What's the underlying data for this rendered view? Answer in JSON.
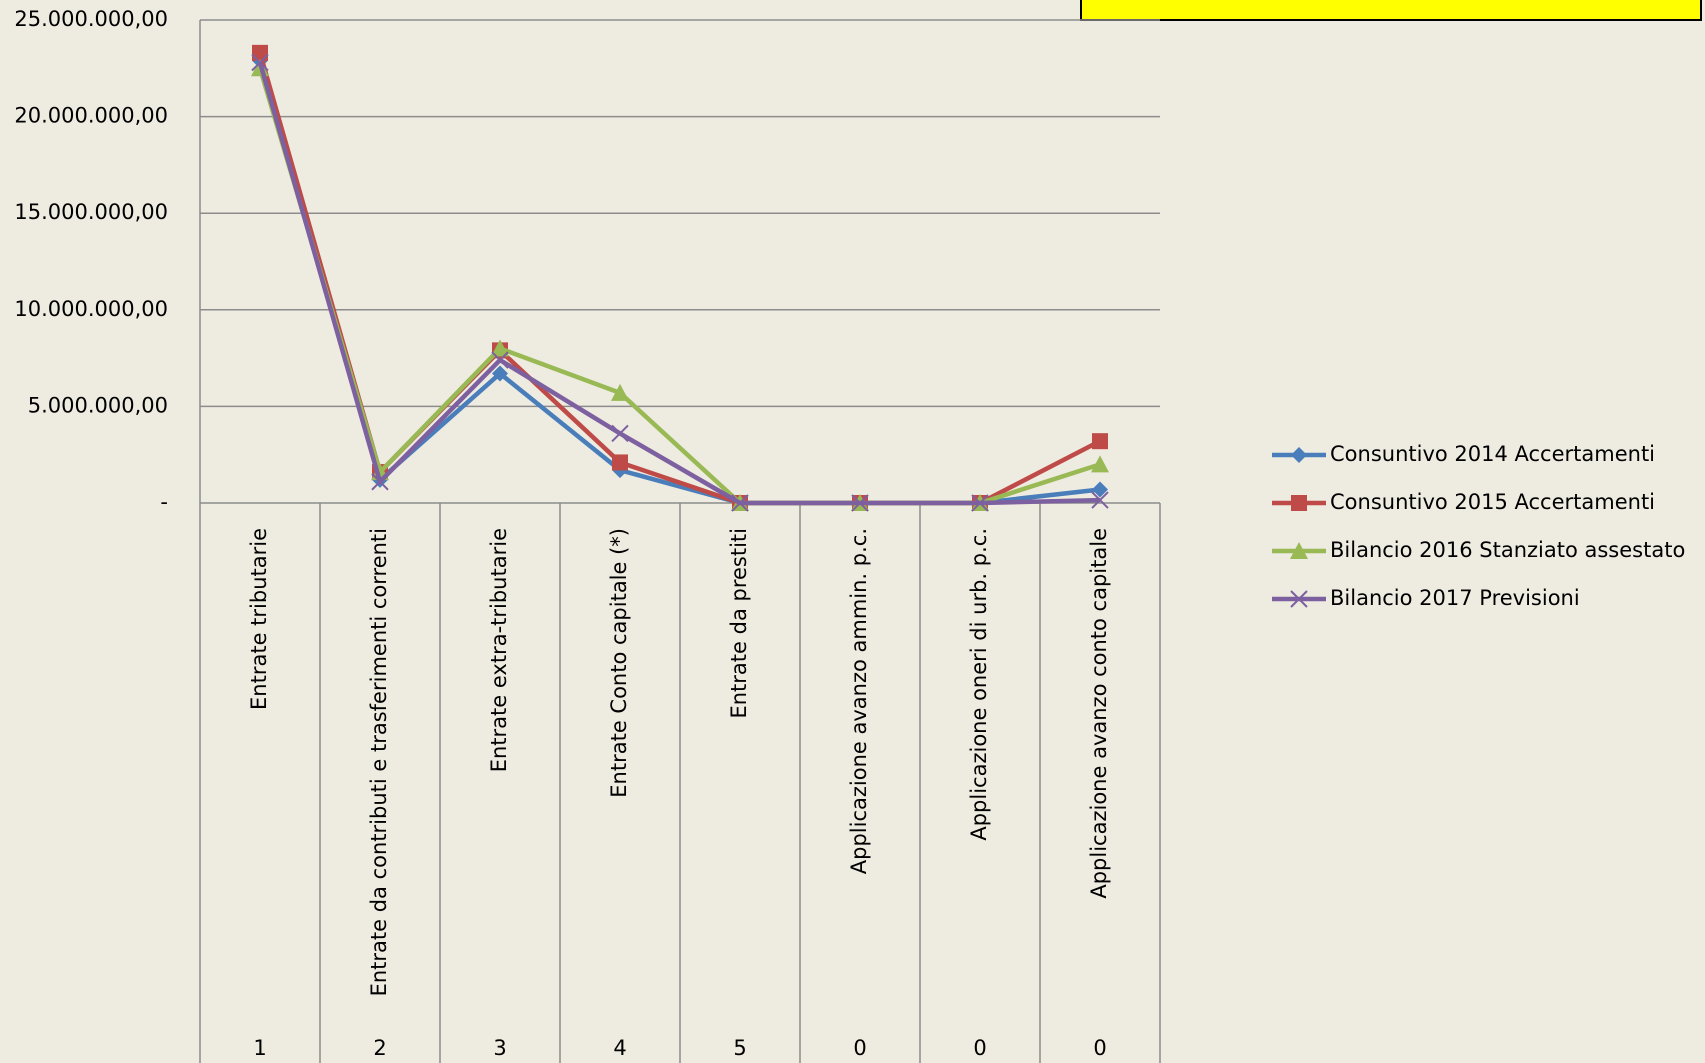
{
  "chart_data": {
    "type": "line",
    "categories": [
      "Entrate tributarie",
      "Entrate da contributi e trasferimenti correnti",
      "Entrate extra-tributarie",
      "Entrate  Conto capitale (*)",
      "Entrate da prestiti",
      "Applicazione avanzo ammin. p.c.",
      "Applicazione oneri di urb. p.c.",
      "Applicazione avanzo conto capitale"
    ],
    "category_numbers": [
      "1",
      "2",
      "3",
      "4",
      "5",
      "0",
      "0",
      "0"
    ],
    "series": [
      {
        "name": "Consuntivo 2014 Accertamenti",
        "color": "#4a7ebb",
        "marker": "diamond",
        "values": [
          22900000,
          1200000,
          6700000,
          1700000,
          0,
          0,
          0,
          700000
        ]
      },
      {
        "name": "Consuntivo 2015 Accertamenti",
        "color": "#be4b48",
        "marker": "square",
        "values": [
          23300000,
          1600000,
          7900000,
          2100000,
          0,
          0,
          0,
          3200000
        ]
      },
      {
        "name": "Bilancio 2016 Stanziato assestato",
        "color": "#98b954",
        "marker": "triangle",
        "values": [
          22500000,
          1600000,
          8000000,
          5700000,
          0,
          0,
          0,
          2000000
        ]
      },
      {
        "name": "Bilancio 2017 Previsioni",
        "color": "#7d60a0",
        "marker": "x",
        "values": [
          22800000,
          1100000,
          7400000,
          3600000,
          0,
          0,
          0,
          150000
        ]
      }
    ],
    "ylim": [
      0,
      25000000
    ],
    "yticks": [
      {
        "value": 0,
        "label": "-"
      },
      {
        "value": 5000000,
        "label": "5.000.000,00"
      },
      {
        "value": 10000000,
        "label": "10.000.000,00"
      },
      {
        "value": 15000000,
        "label": "15.000.000,00"
      },
      {
        "value": 20000000,
        "label": "20.000.000,00"
      },
      {
        "value": 25000000,
        "label": "25.000.000,00"
      }
    ],
    "grid": true,
    "legend": "right"
  }
}
